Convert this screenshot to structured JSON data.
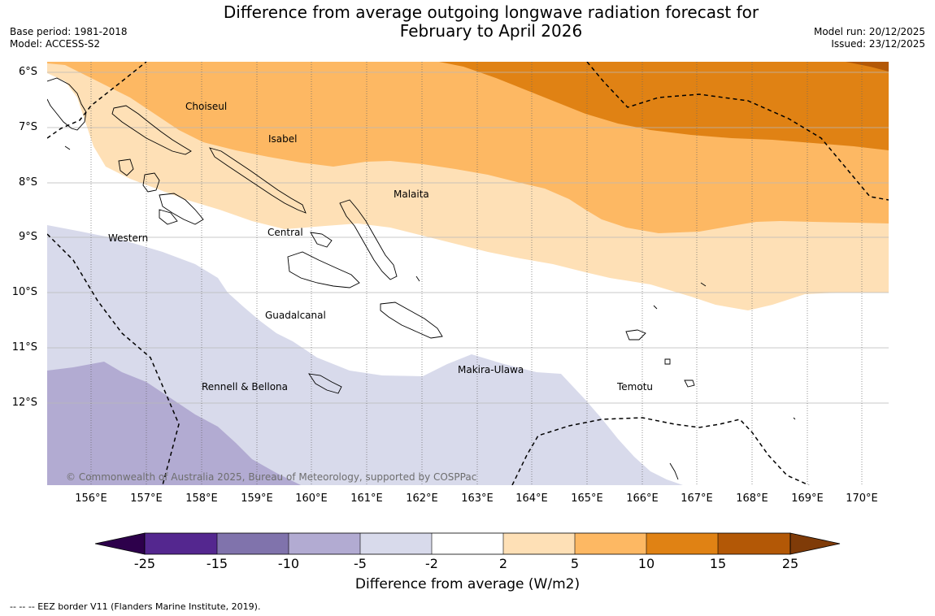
{
  "header": {
    "title_line1": "Difference from average outgoing longwave radiation forecast for",
    "title_line2": "February to April 2026",
    "base_period": "Base period: 1981-2018",
    "model": "Model: ACCESS-S2",
    "model_run": "Model run: 20/12/2025",
    "issued": "Issued: 23/12/2025"
  },
  "map": {
    "lat_labels": [
      "6°S",
      "7°S",
      "8°S",
      "9°S",
      "10°S",
      "11°S",
      "12°S"
    ],
    "lon_labels": [
      "156°E",
      "157°E",
      "158°E",
      "159°E",
      "160°E",
      "161°E",
      "162°E",
      "163°E",
      "164°E",
      "165°E",
      "166°E",
      "167°E",
      "168°E",
      "169°E",
      "170°E"
    ],
    "regions": [
      "Choiseul",
      "Isabel",
      "Malaita",
      "Western",
      "Central",
      "Guadalcanal",
      "Makira-Ulawa",
      "Rennell & Bellona",
      "Temotu"
    ],
    "copyright": "© Commonwealth of Australia 2025, Bureau of Meteorology, supported by COSPPac"
  },
  "colorbar": {
    "ticks": [
      "-25",
      "-15",
      "-10",
      "-5",
      "-2",
      "2",
      "5",
      "10",
      "15",
      "25"
    ],
    "colors": [
      "#54278f",
      "#8073ac",
      "#b2abd2",
      "#d8daeb",
      "#ffffff",
      "#fee0b6",
      "#fdb863",
      "#e08214",
      "#b35806"
    ],
    "low_extend_color": "#2d004b",
    "high_extend_color": "#7f3b08",
    "label": "Difference from average (W/m2)"
  },
  "footnote": "--  --  -- EEZ border V11 (Flanders Marine Institute, 2019)."
}
